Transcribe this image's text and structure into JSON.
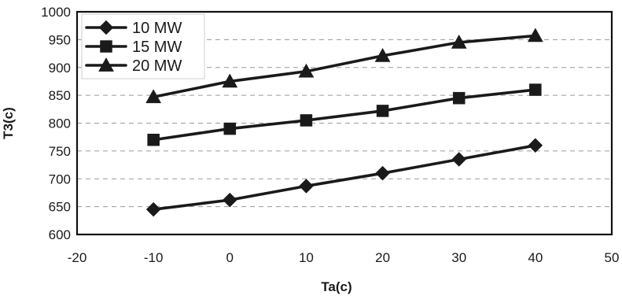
{
  "chart_data": {
    "type": "line",
    "xlabel": "Ta(c)",
    "ylabel": "T3(c)",
    "xlim": [
      -20,
      50
    ],
    "ylim": [
      600,
      1000
    ],
    "x_ticks": [
      -20,
      -10,
      0,
      10,
      20,
      30,
      40,
      50
    ],
    "y_ticks": [
      600,
      650,
      700,
      750,
      800,
      850,
      900,
      950,
      1000
    ],
    "x": [
      -10,
      0,
      10,
      20,
      30,
      40
    ],
    "grid": "horizontal-dashed",
    "legend_position": "top-left",
    "series": [
      {
        "name": "10 MW",
        "marker": "diamond",
        "values": [
          645,
          662,
          687,
          710,
          735,
          760
        ]
      },
      {
        "name": "15 MW",
        "marker": "square",
        "values": [
          770,
          790,
          805,
          822,
          845,
          860
        ]
      },
      {
        "name": "20 MW",
        "marker": "triangle",
        "values": [
          847,
          875,
          893,
          921,
          945,
          957
        ]
      }
    ]
  }
}
